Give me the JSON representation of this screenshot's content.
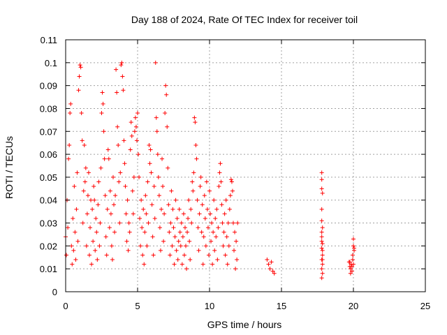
{
  "chart_data": {
    "type": "scatter",
    "title": "Day 188 of 2024, Rate Of TEC Index for receiver toil",
    "xlabel": "GPS time / hours",
    "ylabel": "ROTI / TECUs",
    "xlim": [
      0,
      25
    ],
    "ylim": [
      0,
      0.11
    ],
    "x_ticks": [
      0,
      5,
      10,
      15,
      20,
      25
    ],
    "x_tick_labels": [
      "0",
      "5",
      "10",
      "15",
      "20",
      "25"
    ],
    "y_ticks": [
      0,
      0.01,
      0.02,
      0.03,
      0.04,
      0.05,
      0.06,
      0.07,
      0.08,
      0.09,
      0.1,
      0.11
    ],
    "y_tick_labels": [
      "0",
      "0.01",
      "0.02",
      "0.03",
      "0.04",
      "0.05",
      "0.06",
      "0.07",
      "0.08",
      "0.09",
      "0.1",
      "0.11"
    ],
    "grid": true,
    "marker": "+",
    "color": "#ff0000",
    "series": [
      {
        "name": "ROTI",
        "points": [
          [
            0.0,
            0.024
          ],
          [
            0.05,
            0.016
          ],
          [
            0.1,
            0.04
          ],
          [
            0.15,
            0.028
          ],
          [
            0.2,
            0.058
          ],
          [
            0.25,
            0.064
          ],
          [
            0.3,
            0.078
          ],
          [
            0.35,
            0.082
          ],
          [
            0.4,
            0.02
          ],
          [
            0.45,
            0.012
          ],
          [
            0.5,
            0.032
          ],
          [
            0.55,
            0.018
          ],
          [
            0.6,
            0.046
          ],
          [
            0.65,
            0.026
          ],
          [
            0.7,
            0.014
          ],
          [
            0.75,
            0.036
          ],
          [
            0.8,
            0.052
          ],
          [
            0.85,
            0.022
          ],
          [
            0.9,
            0.088
          ],
          [
            0.95,
            0.094
          ],
          [
            1.0,
            0.099
          ],
          [
            1.05,
            0.098
          ],
          [
            1.1,
            0.078
          ],
          [
            1.15,
            0.066
          ],
          [
            1.2,
            0.03
          ],
          [
            1.25,
            0.044
          ],
          [
            1.3,
            0.064
          ],
          [
            1.35,
            0.048
          ],
          [
            1.4,
            0.054
          ],
          [
            1.45,
            0.02
          ],
          [
            1.5,
            0.034
          ],
          [
            1.55,
            0.042
          ],
          [
            1.6,
            0.052
          ],
          [
            1.65,
            0.016
          ],
          [
            1.7,
            0.028
          ],
          [
            1.75,
            0.04
          ],
          [
            1.8,
            0.012
          ],
          [
            1.85,
            0.036
          ],
          [
            1.9,
            0.022
          ],
          [
            1.95,
            0.046
          ],
          [
            2.0,
            0.04
          ],
          [
            2.05,
            0.018
          ],
          [
            2.1,
            0.032
          ],
          [
            2.15,
            0.026
          ],
          [
            2.2,
            0.014
          ],
          [
            2.25,
            0.038
          ],
          [
            2.3,
            0.048
          ],
          [
            2.35,
            0.02
          ],
          [
            2.4,
            0.03
          ],
          [
            2.45,
            0.054
          ],
          [
            2.5,
            0.078
          ],
          [
            2.55,
            0.087
          ],
          [
            2.6,
            0.082
          ],
          [
            2.65,
            0.07
          ],
          [
            2.7,
            0.058
          ],
          [
            2.75,
            0.042
          ],
          [
            2.8,
            0.024
          ],
          [
            2.85,
            0.016
          ],
          [
            2.9,
            0.036
          ],
          [
            2.95,
            0.062
          ],
          [
            3.0,
            0.058
          ],
          [
            3.05,
            0.028
          ],
          [
            3.1,
            0.044
          ],
          [
            3.15,
            0.034
          ],
          [
            3.2,
            0.02
          ],
          [
            3.25,
            0.014
          ],
          [
            3.3,
            0.05
          ],
          [
            3.35,
            0.038
          ],
          [
            3.4,
            0.026
          ],
          [
            3.45,
            0.042
          ],
          [
            3.5,
            0.097
          ],
          [
            3.55,
            0.087
          ],
          [
            3.6,
            0.072
          ],
          [
            3.65,
            0.064
          ],
          [
            3.7,
            0.048
          ],
          [
            3.75,
            0.03
          ],
          [
            3.8,
            0.052
          ],
          [
            3.85,
            0.099
          ],
          [
            3.9,
            0.1
          ],
          [
            3.95,
            0.094
          ],
          [
            4.0,
            0.088
          ],
          [
            4.05,
            0.066
          ],
          [
            4.1,
            0.056
          ],
          [
            4.15,
            0.046
          ],
          [
            4.2,
            0.034
          ],
          [
            4.25,
            0.022
          ],
          [
            4.3,
            0.04
          ],
          [
            4.35,
            0.018
          ],
          [
            4.4,
            0.03
          ],
          [
            4.45,
            0.026
          ],
          [
            4.5,
            0.062
          ],
          [
            4.55,
            0.074
          ],
          [
            4.6,
            0.068
          ],
          [
            4.65,
            0.044
          ],
          [
            4.7,
            0.034
          ],
          [
            4.75,
            0.05
          ],
          [
            4.8,
            0.07
          ],
          [
            4.85,
            0.076
          ],
          [
            4.9,
            0.072
          ],
          [
            4.95,
            0.066
          ],
          [
            5.0,
            0.078
          ],
          [
            5.05,
            0.06
          ],
          [
            5.1,
            0.05
          ],
          [
            5.15,
            0.032
          ],
          [
            5.2,
            0.02
          ],
          [
            5.25,
            0.04
          ],
          [
            5.3,
            0.028
          ],
          [
            5.35,
            0.016
          ],
          [
            5.4,
            0.036
          ],
          [
            5.45,
            0.012
          ],
          [
            5.5,
            0.026
          ],
          [
            5.55,
            0.042
          ],
          [
            5.6,
            0.034
          ],
          [
            5.65,
            0.02
          ],
          [
            5.7,
            0.048
          ],
          [
            5.75,
            0.03
          ],
          [
            5.8,
            0.064
          ],
          [
            5.85,
            0.056
          ],
          [
            5.9,
            0.062
          ],
          [
            5.95,
            0.052
          ],
          [
            6.0,
            0.038
          ],
          [
            6.05,
            0.024
          ],
          [
            6.1,
            0.016
          ],
          [
            6.15,
            0.046
          ],
          [
            6.2,
            0.032
          ],
          [
            6.25,
            0.1
          ],
          [
            6.3,
            0.076
          ],
          [
            6.35,
            0.07
          ],
          [
            6.4,
            0.06
          ],
          [
            6.45,
            0.05
          ],
          [
            6.5,
            0.042
          ],
          [
            6.55,
            0.028
          ],
          [
            6.6,
            0.018
          ],
          [
            6.65,
            0.036
          ],
          [
            6.7,
            0.058
          ],
          [
            6.75,
            0.046
          ],
          [
            6.8,
            0.022
          ],
          [
            6.85,
            0.034
          ],
          [
            6.9,
            0.078
          ],
          [
            6.95,
            0.09
          ],
          [
            7.0,
            0.086
          ],
          [
            7.05,
            0.072
          ],
          [
            7.1,
            0.054
          ],
          [
            7.15,
            0.038
          ],
          [
            7.2,
            0.026
          ],
          [
            7.25,
            0.016
          ],
          [
            7.3,
            0.03
          ],
          [
            7.35,
            0.044
          ],
          [
            7.4,
            0.02
          ],
          [
            7.45,
            0.036
          ],
          [
            7.5,
            0.028
          ],
          [
            7.55,
            0.012
          ],
          [
            7.6,
            0.024
          ],
          [
            7.65,
            0.04
          ],
          [
            7.7,
            0.018
          ],
          [
            7.75,
            0.032
          ],
          [
            7.8,
            0.014
          ],
          [
            7.85,
            0.022
          ],
          [
            7.9,
            0.036
          ],
          [
            7.95,
            0.026
          ],
          [
            8.0,
            0.02
          ],
          [
            8.05,
            0.03
          ],
          [
            8.1,
            0.012
          ],
          [
            8.15,
            0.024
          ],
          [
            8.2,
            0.034
          ],
          [
            8.25,
            0.016
          ],
          [
            8.3,
            0.028
          ],
          [
            8.35,
            0.02
          ],
          [
            8.4,
            0.01
          ],
          [
            8.45,
            0.026
          ],
          [
            8.5,
            0.032
          ],
          [
            8.55,
            0.04
          ],
          [
            8.6,
            0.022
          ],
          [
            8.65,
            0.014
          ],
          [
            8.7,
            0.036
          ],
          [
            8.75,
            0.03
          ],
          [
            8.8,
            0.048
          ],
          [
            8.85,
            0.044
          ],
          [
            8.9,
            0.052
          ],
          [
            8.95,
            0.076
          ],
          [
            9.0,
            0.074
          ],
          [
            9.05,
            0.064
          ],
          [
            9.1,
            0.058
          ],
          [
            9.15,
            0.04
          ],
          [
            9.2,
            0.028
          ],
          [
            9.25,
            0.018
          ],
          [
            9.3,
            0.034
          ],
          [
            9.35,
            0.046
          ],
          [
            9.4,
            0.05
          ],
          [
            9.45,
            0.026
          ],
          [
            9.5,
            0.038
          ],
          [
            9.55,
            0.012
          ],
          [
            9.6,
            0.024
          ],
          [
            9.65,
            0.042
          ],
          [
            9.7,
            0.032
          ],
          [
            9.75,
            0.02
          ],
          [
            9.8,
            0.048
          ],
          [
            9.85,
            0.036
          ],
          [
            9.9,
            0.028
          ],
          [
            9.95,
            0.016
          ],
          [
            10.0,
            0.044
          ],
          [
            10.05,
            0.034
          ],
          [
            10.1,
            0.022
          ],
          [
            10.15,
            0.03
          ],
          [
            10.2,
            0.012
          ],
          [
            10.25,
            0.026
          ],
          [
            10.3,
            0.04
          ],
          [
            10.35,
            0.018
          ],
          [
            10.4,
            0.032
          ],
          [
            10.45,
            0.024
          ],
          [
            10.5,
            0.036
          ],
          [
            10.55,
            0.014
          ],
          [
            10.6,
            0.028
          ],
          [
            10.65,
            0.046
          ],
          [
            10.7,
            0.052
          ],
          [
            10.75,
            0.056
          ],
          [
            10.8,
            0.048
          ],
          [
            10.85,
            0.038
          ],
          [
            10.9,
            0.03
          ],
          [
            10.95,
            0.02
          ],
          [
            11.0,
            0.026
          ],
          [
            11.05,
            0.034
          ],
          [
            11.1,
            0.016
          ],
          [
            11.15,
            0.04
          ],
          [
            11.2,
            0.024
          ],
          [
            11.25,
            0.012
          ],
          [
            11.3,
            0.03
          ],
          [
            11.35,
            0.02
          ],
          [
            11.4,
            0.036
          ],
          [
            11.45,
            0.042
          ],
          [
            11.5,
            0.049
          ],
          [
            11.55,
            0.048
          ],
          [
            11.6,
            0.044
          ],
          [
            11.65,
            0.03
          ],
          [
            11.7,
            0.018
          ],
          [
            11.75,
            0.026
          ],
          [
            11.8,
            0.01
          ],
          [
            11.85,
            0.022
          ],
          [
            11.9,
            0.014
          ],
          [
            11.95,
            0.03
          ],
          [
            14.0,
            0.014
          ],
          [
            14.1,
            0.012
          ],
          [
            14.2,
            0.01
          ],
          [
            14.3,
            0.013
          ],
          [
            14.4,
            0.009
          ],
          [
            14.5,
            0.008
          ],
          [
            17.8,
            0.052
          ],
          [
            17.8,
            0.049
          ],
          [
            17.8,
            0.045
          ],
          [
            17.85,
            0.043
          ],
          [
            17.8,
            0.036
          ],
          [
            17.8,
            0.031
          ],
          [
            17.85,
            0.028
          ],
          [
            17.8,
            0.024
          ],
          [
            17.85,
            0.021
          ],
          [
            17.8,
            0.019
          ],
          [
            17.85,
            0.016
          ],
          [
            17.8,
            0.014
          ],
          [
            17.85,
            0.012
          ],
          [
            17.8,
            0.01
          ],
          [
            17.85,
            0.008
          ],
          [
            17.8,
            0.006
          ],
          [
            17.85,
            0.018
          ],
          [
            17.8,
            0.026
          ],
          [
            17.85,
            0.014
          ],
          [
            17.8,
            0.022
          ],
          [
            19.7,
            0.013
          ],
          [
            19.75,
            0.011
          ],
          [
            19.8,
            0.01
          ],
          [
            19.85,
            0.012
          ],
          [
            19.9,
            0.009
          ],
          [
            19.95,
            0.014
          ],
          [
            20.0,
            0.023
          ],
          [
            20.0,
            0.02
          ],
          [
            20.05,
            0.019
          ],
          [
            19.95,
            0.016
          ],
          [
            19.8,
            0.008
          ],
          [
            19.9,
            0.011
          ],
          [
            20.0,
            0.012
          ],
          [
            20.05,
            0.018
          ],
          [
            19.75,
            0.013
          ]
        ]
      }
    ]
  }
}
